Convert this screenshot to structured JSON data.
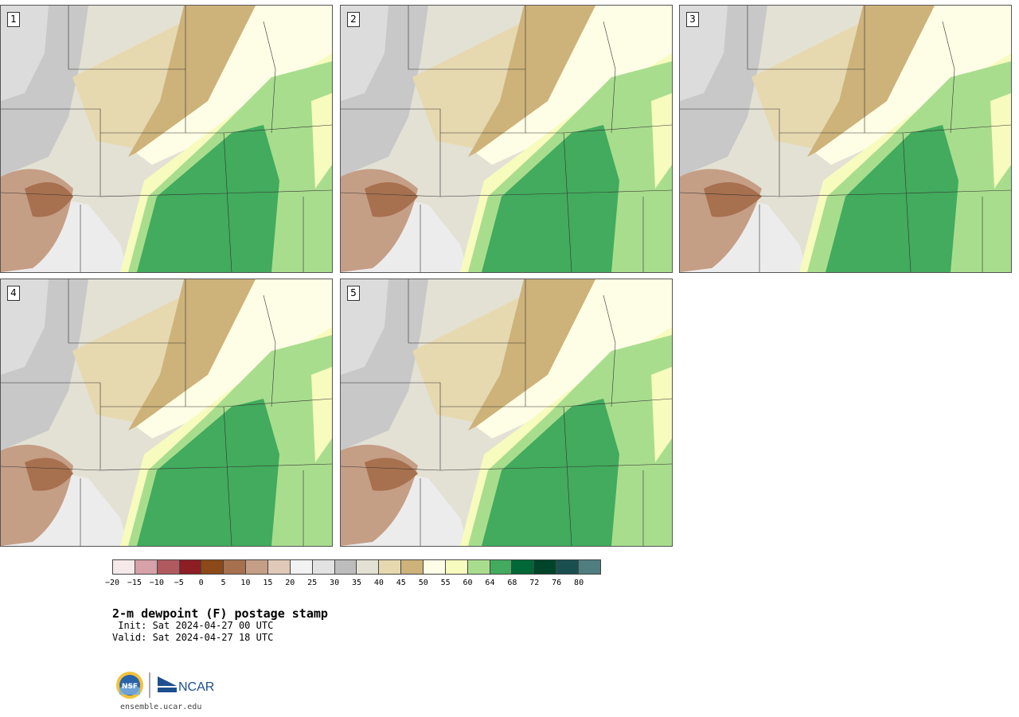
{
  "title": "2-m dewpoint (F) postage stamp",
  "init": " Init: Sat 2024-04-27 00 UTC",
  "valid": "Valid: Sat 2024-04-27 18 UTC",
  "footer_url": "ensemble.ucar.edu",
  "logos": {
    "nsf_text": "NSF",
    "ncar_text": "NCAR"
  },
  "members": [
    "1",
    "2",
    "3",
    "4",
    "5"
  ],
  "colorbar": {
    "colors": [
      "#f5e9ea",
      "#d6a1a8",
      "#b05a60",
      "#8c1e24",
      "#8b4a17",
      "#a7704e",
      "#c59e86",
      "#e0c9b9",
      "#f2f2f2",
      "#e2e2e2",
      "#bdbdbd",
      "#e3e1d4",
      "#e6d9b0",
      "#cdb27a",
      "#fefee6",
      "#f7fbbd",
      "#a9dd8e",
      "#42ab5d",
      "#006837",
      "#00452a",
      "#19504f",
      "#4f7d80"
    ],
    "tick_labels": [
      "−20",
      "−15",
      "−10",
      "−5",
      "0",
      "5",
      "10",
      "15",
      "20",
      "25",
      "30",
      "35",
      "40",
      "45",
      "50",
      "55",
      "60",
      "64",
      "68",
      "72",
      "76",
      "80"
    ]
  }
}
